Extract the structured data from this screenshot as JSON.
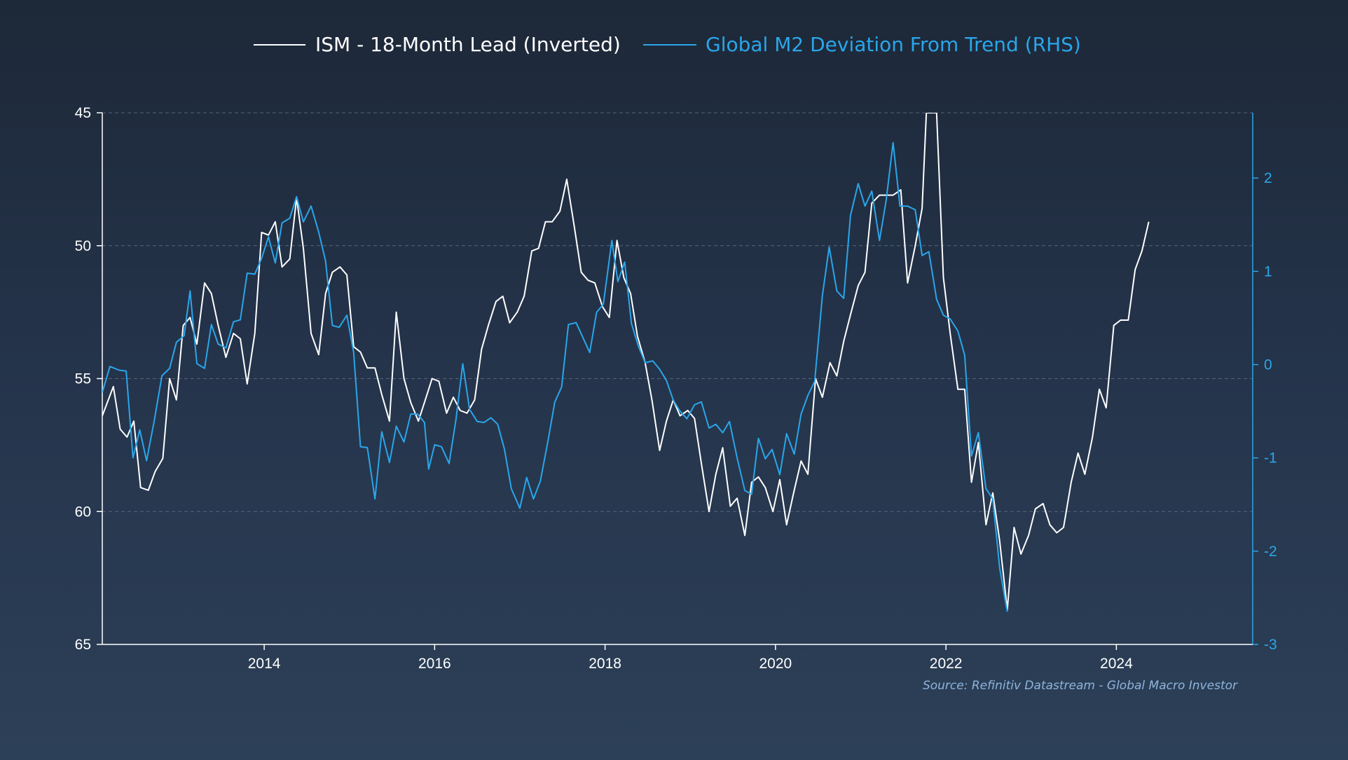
{
  "colors": {
    "ism": "#ffffff",
    "m2": "#2aa6ea",
    "grid": "#6d7b8d",
    "axis_left": "#ffffff",
    "axis_right": "#2aa6ea",
    "source": "#8fb4dc"
  },
  "legend": {
    "ism_label": "ISM - 18-Month Lead (Inverted)",
    "m2_label": "Global M2 Deviation From Trend (RHS)"
  },
  "source": "Source: Refinitiv Datastream - Global Macro Investor",
  "chart_data": {
    "type": "line",
    "title": "",
    "xlabel": "",
    "ylabel": "",
    "legend_position": "top-center",
    "grid": true,
    "x_range": [
      2012.1,
      2025.6
    ],
    "x_ticks": [
      "2014",
      "2016",
      "2018",
      "2020",
      "2022",
      "2024"
    ],
    "y_left": {
      "range": [
        45,
        65
      ],
      "inverted": true,
      "ticks": [
        "45",
        "50",
        "55",
        "60",
        "65"
      ]
    },
    "y_right": {
      "range": [
        -3,
        2.7
      ],
      "inverted": false,
      "ticks": [
        "2",
        "1",
        "0",
        "-1",
        "-2",
        "-3"
      ]
    },
    "series": [
      {
        "name": "ISM - 18-Month Lead (Inverted)",
        "axis": "left",
        "points": [
          [
            2012.1,
            56.4
          ],
          [
            2012.23,
            55.3
          ],
          [
            2012.31,
            56.9
          ],
          [
            2012.39,
            57.2
          ],
          [
            2012.47,
            56.6
          ],
          [
            2012.55,
            59.1
          ],
          [
            2012.64,
            59.2
          ],
          [
            2012.72,
            58.5
          ],
          [
            2012.81,
            58.0
          ],
          [
            2012.89,
            55.0
          ],
          [
            2012.97,
            55.8
          ],
          [
            2013.05,
            53.0
          ],
          [
            2013.13,
            52.7
          ],
          [
            2013.21,
            53.7
          ],
          [
            2013.3,
            51.4
          ],
          [
            2013.38,
            51.8
          ],
          [
            2013.46,
            53.0
          ],
          [
            2013.55,
            54.2
          ],
          [
            2013.64,
            53.3
          ],
          [
            2013.72,
            53.5
          ],
          [
            2013.8,
            55.2
          ],
          [
            2013.89,
            53.3
          ],
          [
            2013.97,
            49.5
          ],
          [
            2014.05,
            49.6
          ],
          [
            2014.13,
            49.1
          ],
          [
            2014.21,
            50.8
          ],
          [
            2014.3,
            50.5
          ],
          [
            2014.38,
            48.2
          ],
          [
            2014.46,
            50.1
          ],
          [
            2014.55,
            53.3
          ],
          [
            2014.64,
            54.1
          ],
          [
            2014.72,
            51.8
          ],
          [
            2014.8,
            51.0
          ],
          [
            2014.89,
            50.8
          ],
          [
            2014.97,
            51.1
          ],
          [
            2015.05,
            53.8
          ],
          [
            2015.13,
            54.0
          ],
          [
            2015.21,
            54.6
          ],
          [
            2015.3,
            54.6
          ],
          [
            2015.38,
            55.6
          ],
          [
            2015.47,
            56.6
          ],
          [
            2015.55,
            52.5
          ],
          [
            2015.64,
            55.0
          ],
          [
            2015.72,
            55.9
          ],
          [
            2015.81,
            56.6
          ],
          [
            2015.89,
            55.8
          ],
          [
            2015.97,
            55.0
          ],
          [
            2016.05,
            55.1
          ],
          [
            2016.14,
            56.3
          ],
          [
            2016.22,
            55.7
          ],
          [
            2016.3,
            56.2
          ],
          [
            2016.38,
            56.3
          ],
          [
            2016.47,
            55.8
          ],
          [
            2016.55,
            53.9
          ],
          [
            2016.63,
            53.0
          ],
          [
            2016.72,
            52.1
          ],
          [
            2016.8,
            51.9
          ],
          [
            2016.88,
            52.9
          ],
          [
            2016.97,
            52.5
          ],
          [
            2017.05,
            51.9
          ],
          [
            2017.14,
            50.2
          ],
          [
            2017.22,
            50.1
          ],
          [
            2017.3,
            49.1
          ],
          [
            2017.38,
            49.1
          ],
          [
            2017.47,
            48.7
          ],
          [
            2017.55,
            47.5
          ],
          [
            2017.64,
            49.3
          ],
          [
            2017.72,
            51.0
          ],
          [
            2017.8,
            51.3
          ],
          [
            2017.88,
            51.4
          ],
          [
            2017.97,
            52.3
          ],
          [
            2018.05,
            52.7
          ],
          [
            2018.14,
            49.8
          ],
          [
            2018.22,
            51.2
          ],
          [
            2018.3,
            51.8
          ],
          [
            2018.38,
            53.4
          ],
          [
            2018.47,
            54.4
          ],
          [
            2018.55,
            55.8
          ],
          [
            2018.64,
            57.7
          ],
          [
            2018.72,
            56.6
          ],
          [
            2018.8,
            55.8
          ],
          [
            2018.88,
            56.4
          ],
          [
            2018.97,
            56.2
          ],
          [
            2019.05,
            56.5
          ],
          [
            2019.13,
            58.2
          ],
          [
            2019.22,
            60.0
          ],
          [
            2019.3,
            58.6
          ],
          [
            2019.38,
            57.6
          ],
          [
            2019.47,
            59.8
          ],
          [
            2019.55,
            59.5
          ],
          [
            2019.64,
            60.9
          ],
          [
            2019.72,
            58.9
          ],
          [
            2019.8,
            58.7
          ],
          [
            2019.88,
            59.1
          ],
          [
            2019.97,
            60.0
          ],
          [
            2020.05,
            58.8
          ],
          [
            2020.13,
            60.5
          ],
          [
            2020.22,
            59.2
          ],
          [
            2020.3,
            58.1
          ],
          [
            2020.38,
            58.6
          ],
          [
            2020.47,
            55.0
          ],
          [
            2020.55,
            55.7
          ],
          [
            2020.64,
            54.4
          ],
          [
            2020.72,
            54.9
          ],
          [
            2020.8,
            53.6
          ],
          [
            2020.88,
            52.6
          ],
          [
            2020.97,
            51.5
          ],
          [
            2021.05,
            51.0
          ],
          [
            2021.13,
            48.4
          ],
          [
            2021.22,
            48.1
          ],
          [
            2021.3,
            48.1
          ],
          [
            2021.38,
            48.1
          ],
          [
            2021.47,
            47.9
          ],
          [
            2021.55,
            51.4
          ],
          [
            2021.64,
            50.0
          ],
          [
            2021.72,
            48.6
          ],
          [
            2021.77,
            45.0
          ],
          [
            2021.89,
            45.0
          ],
          [
            2021.97,
            51.2
          ],
          [
            2022.05,
            53.3
          ],
          [
            2022.14,
            55.4
          ],
          [
            2022.22,
            55.4
          ],
          [
            2022.3,
            58.9
          ],
          [
            2022.38,
            57.4
          ],
          [
            2022.47,
            60.5
          ],
          [
            2022.55,
            59.3
          ],
          [
            2022.63,
            61.1
          ],
          [
            2022.72,
            63.7
          ],
          [
            2022.8,
            60.6
          ],
          [
            2022.88,
            61.6
          ],
          [
            2022.97,
            60.9
          ],
          [
            2023.05,
            59.9
          ],
          [
            2023.14,
            59.7
          ],
          [
            2023.22,
            60.5
          ],
          [
            2023.3,
            60.8
          ],
          [
            2023.38,
            60.6
          ],
          [
            2023.47,
            58.9
          ],
          [
            2023.55,
            57.8
          ],
          [
            2023.63,
            58.6
          ],
          [
            2023.72,
            57.2
          ],
          [
            2023.8,
            55.4
          ],
          [
            2023.88,
            56.1
          ],
          [
            2023.97,
            53.0
          ],
          [
            2024.05,
            52.8
          ],
          [
            2024.14,
            52.8
          ],
          [
            2024.22,
            50.9
          ],
          [
            2024.3,
            50.2
          ],
          [
            2024.38,
            49.1
          ]
        ]
      },
      {
        "name": "Global M2 Deviation From Trend (RHS)",
        "axis": "right",
        "points": [
          [
            2012.1,
            -0.3
          ],
          [
            2012.19,
            -0.02
          ],
          [
            2012.3,
            -0.06
          ],
          [
            2012.38,
            -0.07
          ],
          [
            2012.46,
            -1.0
          ],
          [
            2012.54,
            -0.7
          ],
          [
            2012.62,
            -1.03
          ],
          [
            2012.71,
            -0.6
          ],
          [
            2012.8,
            -0.12
          ],
          [
            2012.89,
            -0.04
          ],
          [
            2012.97,
            0.24
          ],
          [
            2013.06,
            0.31
          ],
          [
            2013.13,
            0.79
          ],
          [
            2013.21,
            0.01
          ],
          [
            2013.3,
            -0.04
          ],
          [
            2013.38,
            0.43
          ],
          [
            2013.46,
            0.22
          ],
          [
            2013.55,
            0.18
          ],
          [
            2013.64,
            0.46
          ],
          [
            2013.72,
            0.48
          ],
          [
            2013.8,
            0.98
          ],
          [
            2013.89,
            0.97
          ],
          [
            2013.97,
            1.14
          ],
          [
            2014.05,
            1.37
          ],
          [
            2014.13,
            1.09
          ],
          [
            2014.21,
            1.52
          ],
          [
            2014.3,
            1.57
          ],
          [
            2014.38,
            1.8
          ],
          [
            2014.46,
            1.53
          ],
          [
            2014.55,
            1.7
          ],
          [
            2014.64,
            1.42
          ],
          [
            2014.72,
            1.11
          ],
          [
            2014.8,
            0.42
          ],
          [
            2014.88,
            0.4
          ],
          [
            2014.97,
            0.53
          ],
          [
            2015.05,
            0.13
          ],
          [
            2015.13,
            -0.88
          ],
          [
            2015.21,
            -0.89
          ],
          [
            2015.3,
            -1.44
          ],
          [
            2015.38,
            -0.72
          ],
          [
            2015.47,
            -1.05
          ],
          [
            2015.55,
            -0.66
          ],
          [
            2015.64,
            -0.83
          ],
          [
            2015.72,
            -0.53
          ],
          [
            2015.8,
            -0.53
          ],
          [
            2015.88,
            -0.62
          ],
          [
            2015.93,
            -1.12
          ],
          [
            2016.0,
            -0.86
          ],
          [
            2016.08,
            -0.88
          ],
          [
            2016.17,
            -1.06
          ],
          [
            2016.25,
            -0.59
          ],
          [
            2016.33,
            0.01
          ],
          [
            2016.41,
            -0.48
          ],
          [
            2016.5,
            -0.61
          ],
          [
            2016.58,
            -0.62
          ],
          [
            2016.66,
            -0.57
          ],
          [
            2016.74,
            -0.64
          ],
          [
            2016.82,
            -0.91
          ],
          [
            2016.9,
            -1.33
          ],
          [
            2017.0,
            -1.54
          ],
          [
            2017.08,
            -1.21
          ],
          [
            2017.16,
            -1.44
          ],
          [
            2017.24,
            -1.25
          ],
          [
            2017.33,
            -0.82
          ],
          [
            2017.41,
            -0.4
          ],
          [
            2017.49,
            -0.24
          ],
          [
            2017.57,
            0.43
          ],
          [
            2017.66,
            0.45
          ],
          [
            2017.74,
            0.29
          ],
          [
            2017.82,
            0.13
          ],
          [
            2017.9,
            0.56
          ],
          [
            2017.98,
            0.65
          ],
          [
            2018.08,
            1.33
          ],
          [
            2018.15,
            0.89
          ],
          [
            2018.23,
            1.1
          ],
          [
            2018.31,
            0.44
          ],
          [
            2018.39,
            0.2
          ],
          [
            2018.47,
            0.02
          ],
          [
            2018.56,
            0.04
          ],
          [
            2018.64,
            -0.05
          ],
          [
            2018.72,
            -0.17
          ],
          [
            2018.8,
            -0.38
          ],
          [
            2018.88,
            -0.5
          ],
          [
            2018.96,
            -0.58
          ],
          [
            2019.05,
            -0.43
          ],
          [
            2019.13,
            -0.4
          ],
          [
            2019.22,
            -0.68
          ],
          [
            2019.3,
            -0.64
          ],
          [
            2019.38,
            -0.73
          ],
          [
            2019.46,
            -0.61
          ],
          [
            2019.55,
            -1.0
          ],
          [
            2019.64,
            -1.35
          ],
          [
            2019.72,
            -1.39
          ],
          [
            2019.8,
            -0.79
          ],
          [
            2019.88,
            -1.01
          ],
          [
            2019.96,
            -0.91
          ],
          [
            2020.05,
            -1.18
          ],
          [
            2020.13,
            -0.74
          ],
          [
            2020.22,
            -0.96
          ],
          [
            2020.3,
            -0.53
          ],
          [
            2020.38,
            -0.33
          ],
          [
            2020.46,
            -0.18
          ],
          [
            2020.55,
            0.74
          ],
          [
            2020.63,
            1.26
          ],
          [
            2020.72,
            0.79
          ],
          [
            2020.8,
            0.71
          ],
          [
            2020.88,
            1.6
          ],
          [
            2020.97,
            1.94
          ],
          [
            2021.05,
            1.7
          ],
          [
            2021.13,
            1.86
          ],
          [
            2021.22,
            1.33
          ],
          [
            2021.3,
            1.77
          ],
          [
            2021.38,
            2.38
          ],
          [
            2021.46,
            1.7
          ],
          [
            2021.55,
            1.7
          ],
          [
            2021.64,
            1.66
          ],
          [
            2021.72,
            1.17
          ],
          [
            2021.8,
            1.21
          ],
          [
            2021.89,
            0.7
          ],
          [
            2021.97,
            0.53
          ],
          [
            2022.05,
            0.49
          ],
          [
            2022.14,
            0.36
          ],
          [
            2022.22,
            0.1
          ],
          [
            2022.3,
            -0.98
          ],
          [
            2022.38,
            -0.73
          ],
          [
            2022.47,
            -1.33
          ],
          [
            2022.55,
            -1.44
          ],
          [
            2022.63,
            -2.18
          ],
          [
            2022.72,
            -2.65
          ]
        ]
      }
    ]
  }
}
